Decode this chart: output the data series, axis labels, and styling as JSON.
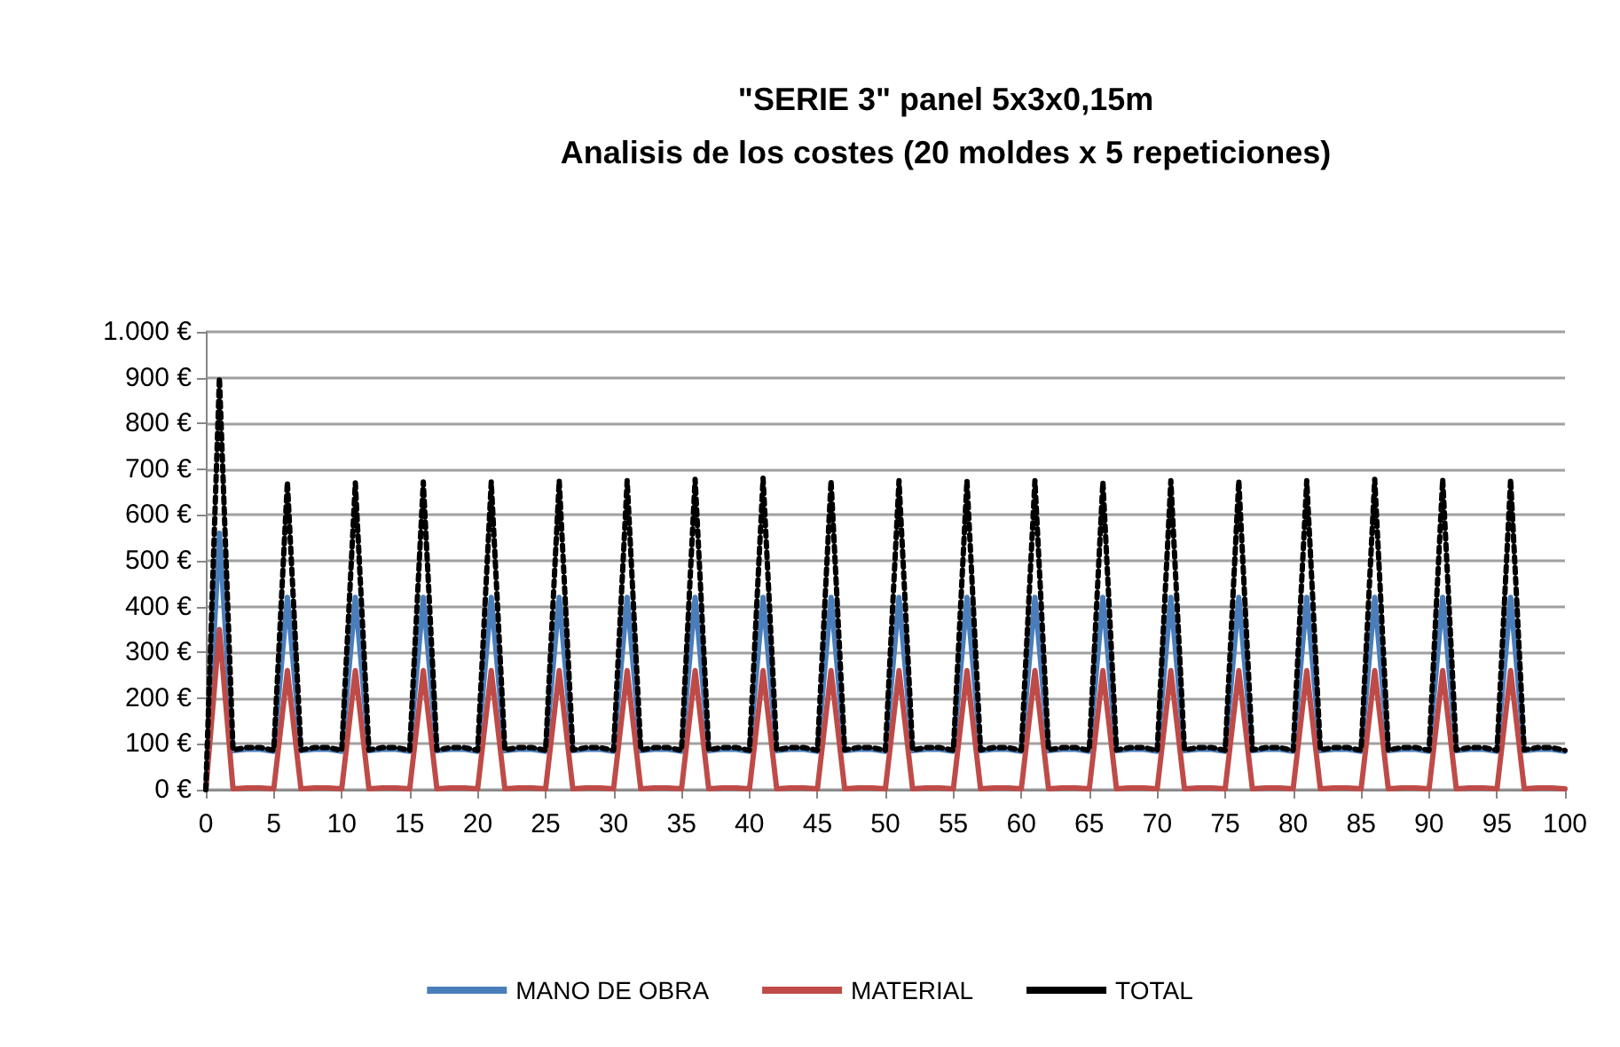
{
  "chart_data": {
    "type": "line",
    "title": "\"SERIE 3\" panel 5x3x0,15m\nAnalisis de los costes (20 moldes x 5 repeticiones)",
    "x": [
      0,
      1,
      2,
      3,
      4,
      5,
      6,
      7,
      8,
      9,
      10,
      11,
      12,
      13,
      14,
      15,
      16,
      17,
      18,
      19,
      20,
      21,
      22,
      23,
      24,
      25,
      26,
      27,
      28,
      29,
      30,
      31,
      32,
      33,
      34,
      35,
      36,
      37,
      38,
      39,
      40,
      41,
      42,
      43,
      44,
      45,
      46,
      47,
      48,
      49,
      50,
      51,
      52,
      53,
      54,
      55,
      56,
      57,
      58,
      59,
      60,
      61,
      62,
      63,
      64,
      65,
      66,
      67,
      68,
      69,
      70,
      71,
      72,
      73,
      74,
      75,
      76,
      77,
      78,
      79,
      80,
      81,
      82,
      83,
      84,
      85,
      86,
      87,
      88,
      89,
      90,
      91,
      92,
      93,
      94,
      95,
      96,
      97,
      98,
      99,
      100
    ],
    "series": [
      {
        "name": "MANO DE OBRA",
        "color": "#4a7ebb",
        "line_style": "solid",
        "values": [
          0,
          560,
          85,
          88,
          88,
          84,
          420,
          85,
          88,
          88,
          84,
          420,
          85,
          88,
          88,
          84,
          420,
          85,
          88,
          88,
          84,
          420,
          85,
          88,
          88,
          84,
          420,
          85,
          88,
          88,
          84,
          420,
          85,
          88,
          88,
          84,
          420,
          85,
          88,
          88,
          84,
          420,
          85,
          88,
          88,
          84,
          420,
          85,
          88,
          88,
          84,
          420,
          85,
          88,
          88,
          84,
          420,
          85,
          88,
          88,
          84,
          420,
          85,
          88,
          88,
          84,
          420,
          85,
          88,
          88,
          84,
          420,
          85,
          88,
          88,
          84,
          420,
          85,
          88,
          88,
          84,
          420,
          85,
          88,
          88,
          84,
          420,
          85,
          88,
          88,
          84,
          420,
          85,
          88,
          88,
          84,
          420,
          85,
          88,
          88,
          84
        ]
      },
      {
        "name": "MATERIAL",
        "color": "#be4b48",
        "line_style": "solid",
        "values": [
          0,
          350,
          2,
          4,
          4,
          2,
          260,
          2,
          4,
          4,
          2,
          260,
          2,
          4,
          4,
          2,
          260,
          2,
          4,
          4,
          2,
          260,
          2,
          4,
          4,
          2,
          260,
          2,
          4,
          4,
          2,
          260,
          2,
          4,
          4,
          2,
          260,
          2,
          4,
          4,
          2,
          260,
          2,
          4,
          4,
          2,
          260,
          2,
          4,
          4,
          2,
          260,
          2,
          4,
          4,
          2,
          260,
          2,
          4,
          4,
          2,
          260,
          2,
          4,
          4,
          2,
          260,
          2,
          4,
          4,
          2,
          260,
          2,
          4,
          4,
          2,
          260,
          2,
          4,
          4,
          2,
          260,
          2,
          4,
          4,
          2,
          260,
          2,
          4,
          4,
          2,
          260,
          2,
          4,
          4,
          2,
          260,
          2,
          4,
          4,
          2
        ]
      },
      {
        "name": "TOTAL",
        "color": "#000000",
        "line_style": "dotted",
        "values": [
          0,
          900,
          87,
          92,
          92,
          86,
          672,
          87,
          92,
          92,
          86,
          670,
          87,
          92,
          92,
          86,
          672,
          87,
          92,
          92,
          86,
          672,
          87,
          92,
          92,
          86,
          675,
          87,
          92,
          92,
          86,
          675,
          87,
          92,
          92,
          86,
          678,
          87,
          92,
          92,
          86,
          680,
          87,
          92,
          92,
          86,
          675,
          87,
          92,
          92,
          86,
          675,
          87,
          92,
          92,
          86,
          675,
          87,
          92,
          92,
          86,
          675,
          87,
          92,
          92,
          86,
          672,
          87,
          92,
          92,
          86,
          675,
          87,
          92,
          92,
          86,
          675,
          87,
          92,
          92,
          86,
          675,
          87,
          92,
          92,
          86,
          678,
          87,
          92,
          92,
          86,
          678,
          87,
          92,
          92,
          86,
          678,
          87,
          92,
          92,
          86
        ]
      }
    ],
    "xlim": [
      0,
      100
    ],
    "xticks": [
      0,
      5,
      10,
      15,
      20,
      25,
      30,
      35,
      40,
      45,
      50,
      55,
      60,
      65,
      70,
      75,
      80,
      85,
      90,
      95,
      100
    ],
    "ylim": [
      0,
      1000
    ],
    "yticks": [
      {
        "value": 0,
        "label": "0 €"
      },
      {
        "value": 100,
        "label": "100 €"
      },
      {
        "value": 200,
        "label": "200 €"
      },
      {
        "value": 300,
        "label": "300 €"
      },
      {
        "value": 400,
        "label": "400 €"
      },
      {
        "value": 500,
        "label": "500 €"
      },
      {
        "value": 600,
        "label": "600 €"
      },
      {
        "value": 700,
        "label": "700 €"
      },
      {
        "value": 800,
        "label": "800 €"
      },
      {
        "value": 900,
        "label": "900 €"
      },
      {
        "value": 1000,
        "label": "1.000 €"
      }
    ],
    "grid": "y",
    "legend": "bottom",
    "marker": "none"
  }
}
